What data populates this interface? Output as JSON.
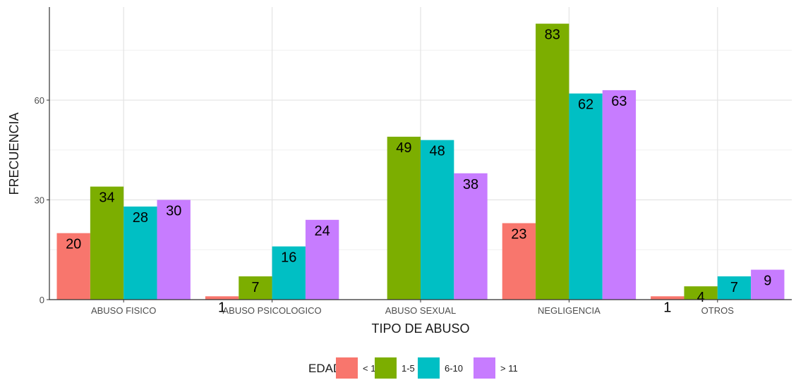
{
  "chart_data": {
    "type": "bar",
    "title": "",
    "xlabel": "TIPO DE ABUSO",
    "ylabel": "FRECUENCIA",
    "categories": [
      "ABUSO FISICO",
      "ABUSO PSICOLOGICO",
      "ABUSO SEXUAL",
      "NEGLIGENCIA",
      "OTROS"
    ],
    "series": [
      {
        "name": "< 1",
        "color": "#F8766D",
        "values": [
          20,
          1,
          null,
          23,
          1
        ]
      },
      {
        "name": "1-5",
        "color": "#7CAE00",
        "values": [
          34,
          7,
          49,
          83,
          4
        ]
      },
      {
        "name": "6-10",
        "color": "#00BFC4",
        "values": [
          28,
          16,
          48,
          62,
          7
        ]
      },
      {
        "name": "> 11",
        "color": "#C77CFF",
        "values": [
          30,
          24,
          38,
          63,
          9
        ]
      }
    ],
    "ylim": [
      0,
      88
    ],
    "yticks": [
      0,
      30,
      60
    ],
    "grid": true,
    "legend": {
      "title": "EDAD",
      "position": "bottom"
    }
  }
}
